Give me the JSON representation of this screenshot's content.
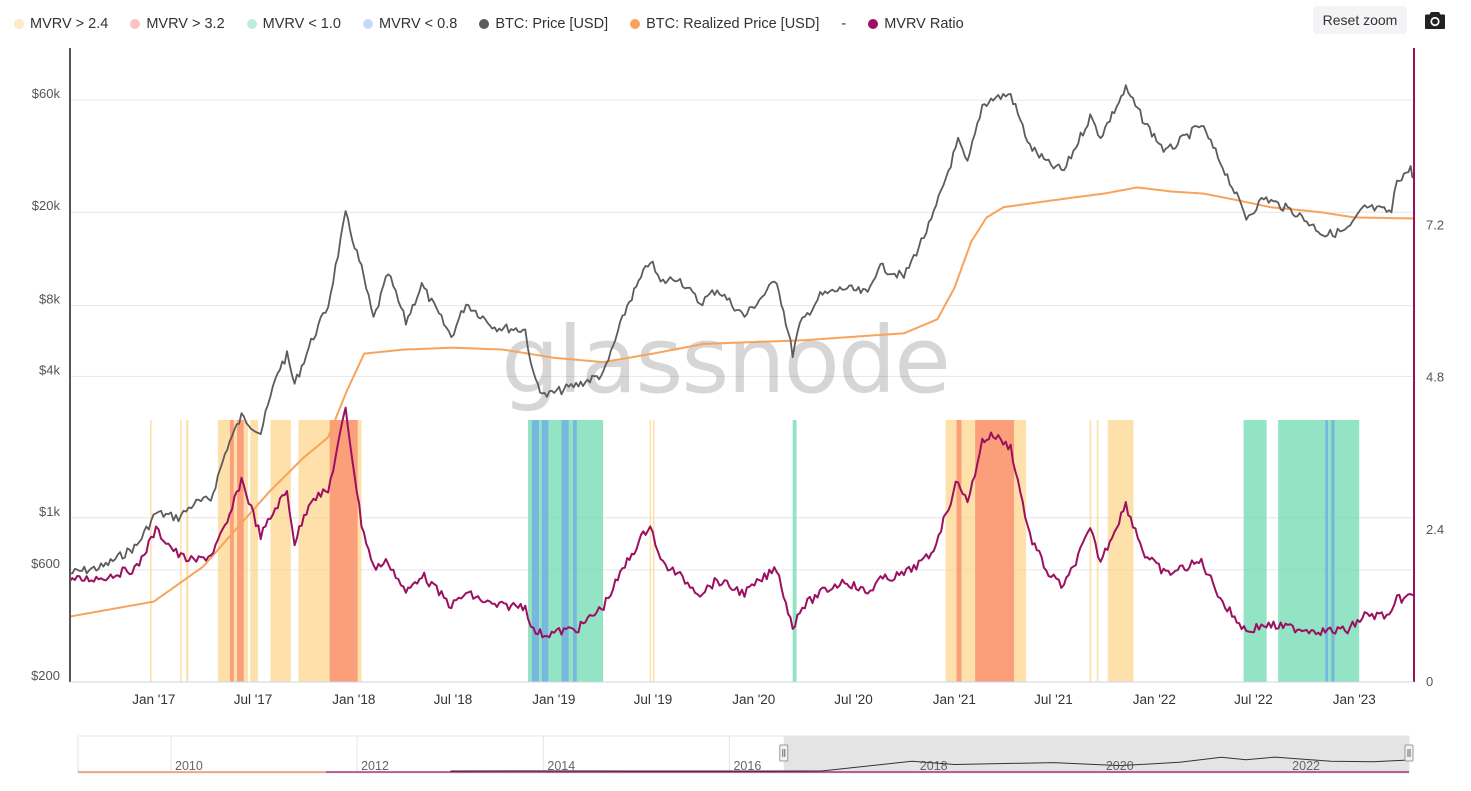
{
  "legend": [
    {
      "label": "MVRV > 2.4",
      "color": "#fde9c4"
    },
    {
      "label": "MVRV > 3.2",
      "color": "#fbc4c0"
    },
    {
      "label": "MVRV < 1.0",
      "color": "#bdeedd"
    },
    {
      "label": "MVRV < 0.8",
      "color": "#c4d9fb"
    },
    {
      "label": "BTC: Price [USD]",
      "color": "#5c5c5c"
    },
    {
      "label": "BTC: Realized Price [USD]",
      "color": "#f7a35c"
    },
    {
      "label": "-",
      "color": ""
    },
    {
      "label": "MVRV Ratio",
      "color": "#9b1060"
    }
  ],
  "toolbar": {
    "reset_zoom_label": "Reset zoom"
  },
  "watermark": "glassnode",
  "colors": {
    "price": "#5c5c5c",
    "realized": "#f7a35c",
    "mvrv": "#9b1060",
    "band_gt24": "#fcd68d",
    "band_gt32": "#f98a6b",
    "band_lt10": "#6fd9b1",
    "band_lt08": "#6fa8e6"
  },
  "chart_data": {
    "type": "line",
    "left_axis": {
      "scale": "log",
      "range": [
        200,
        100000
      ],
      "ticks": [
        200,
        600,
        1000,
        4000,
        8000,
        20000,
        60000
      ],
      "tick_labels": [
        "$200",
        "$600",
        "$1k",
        "$4k",
        "$8k",
        "$20k",
        "$60k"
      ]
    },
    "right_axis": {
      "scale": "linear",
      "range": [
        0,
        10
      ],
      "ticks": [
        0,
        2.4,
        4.8,
        7.2
      ],
      "tick_labels": [
        "0",
        "2.4",
        "4.8",
        "7.2"
      ]
    },
    "x_range": [
      "2016-08-01",
      "2023-04-20"
    ],
    "x_ticks": [
      "2017-01-01",
      "2017-07-01",
      "2018-01-01",
      "2018-07-01",
      "2019-01-01",
      "2019-07-01",
      "2020-01-01",
      "2020-07-01",
      "2021-01-01",
      "2021-07-01",
      "2022-01-01",
      "2022-07-01",
      "2023-01-01"
    ],
    "x_tick_labels": [
      "Jan '17",
      "Jul '17",
      "Jan '18",
      "Jul '18",
      "Jan '19",
      "Jul '19",
      "Jan '20",
      "Jul '20",
      "Jan '21",
      "Jul '21",
      "Jan '22",
      "Jul '22",
      "Jan '23"
    ],
    "series": [
      {
        "name": "BTC: Price [USD]",
        "axis": "left",
        "x": [
          "2016-08-01",
          "2016-10-01",
          "2016-12-01",
          "2017-01-05",
          "2017-02-15",
          "2017-03-15",
          "2017-04-15",
          "2017-05-15",
          "2017-06-10",
          "2017-07-15",
          "2017-08-15",
          "2017-09-01",
          "2017-09-15",
          "2017-10-15",
          "2017-11-15",
          "2017-12-17",
          "2018-01-15",
          "2018-02-06",
          "2018-03-05",
          "2018-04-06",
          "2018-05-05",
          "2018-06-28",
          "2018-07-25",
          "2018-09-15",
          "2018-11-10",
          "2018-11-25",
          "2018-12-15",
          "2019-02-15",
          "2019-04-02",
          "2019-05-15",
          "2019-06-26",
          "2019-07-15",
          "2019-08-15",
          "2019-09-25",
          "2019-10-26",
          "2019-12-15",
          "2020-02-12",
          "2020-03-12",
          "2020-03-25",
          "2020-05-01",
          "2020-06-15",
          "2020-07-27",
          "2020-08-15",
          "2020-10-01",
          "2020-11-20",
          "2021-01-08",
          "2021-01-25",
          "2021-02-21",
          "2021-03-13",
          "2021-04-14",
          "2021-05-19",
          "2021-06-22",
          "2021-07-20",
          "2021-09-06",
          "2021-09-25",
          "2021-11-10",
          "2021-12-15",
          "2022-01-22",
          "2022-03-28",
          "2022-05-10",
          "2022-06-18",
          "2022-07-20",
          "2022-09-15",
          "2022-11-09",
          "2022-12-20",
          "2023-01-20",
          "2023-03-10",
          "2023-03-20",
          "2023-04-14",
          "2023-04-20"
        ],
        "y": [
          580,
          620,
          760,
          1050,
          1000,
          1150,
          1200,
          2000,
          2700,
          2300,
          4200,
          4900,
          3700,
          5600,
          8000,
          19500,
          11500,
          7000,
          11000,
          6800,
          9800,
          5900,
          8200,
          6500,
          6300,
          4000,
          3300,
          3700,
          4100,
          8000,
          12500,
          10000,
          10600,
          8200,
          9400,
          7200,
          10300,
          5000,
          6600,
          8800,
          9500,
          9000,
          11800,
          10600,
          18300,
          40000,
          32000,
          57000,
          61000,
          63500,
          38000,
          32000,
          30000,
          51000,
          42000,
          67000,
          48000,
          36000,
          47000,
          30000,
          19000,
          23000,
          20000,
          16000,
          16800,
          21000,
          20000,
          27500,
          30500,
          28000
        ]
      },
      {
        "name": "BTC: Realized Price [USD]",
        "axis": "left",
        "x": [
          "2016-08-01",
          "2017-01-01",
          "2017-04-01",
          "2017-06-01",
          "2017-08-01",
          "2017-10-01",
          "2017-11-15",
          "2017-12-20",
          "2018-01-20",
          "2018-04-01",
          "2018-07-01",
          "2018-10-01",
          "2019-01-01",
          "2019-04-01",
          "2019-07-01",
          "2019-10-01",
          "2020-01-01",
          "2020-04-01",
          "2020-07-01",
          "2020-10-01",
          "2020-12-01",
          "2021-01-01",
          "2021-02-01",
          "2021-03-01",
          "2021-04-01",
          "2021-06-01",
          "2021-08-01",
          "2021-10-01",
          "2021-12-01",
          "2022-02-01",
          "2022-04-01",
          "2022-06-01",
          "2022-08-01",
          "2022-11-01",
          "2023-01-01",
          "2023-04-20"
        ],
        "y": [
          380,
          440,
          620,
          900,
          1300,
          1800,
          2200,
          3500,
          5000,
          5200,
          5300,
          5200,
          4800,
          4600,
          5000,
          5500,
          5600,
          5700,
          5900,
          6100,
          7000,
          9500,
          15000,
          19000,
          21000,
          22000,
          23000,
          24000,
          25500,
          24500,
          24000,
          22500,
          21000,
          20000,
          19000,
          18800
        ]
      },
      {
        "name": "MVRV Ratio",
        "axis": "right",
        "x": [
          "2016-08-01",
          "2016-10-01",
          "2016-12-01",
          "2017-01-05",
          "2017-02-15",
          "2017-03-15",
          "2017-04-15",
          "2017-05-15",
          "2017-06-10",
          "2017-07-15",
          "2017-08-15",
          "2017-09-01",
          "2017-09-15",
          "2017-10-15",
          "2017-11-15",
          "2017-12-17",
          "2018-01-15",
          "2018-02-06",
          "2018-03-05",
          "2018-04-06",
          "2018-05-05",
          "2018-06-28",
          "2018-07-25",
          "2018-09-15",
          "2018-11-10",
          "2018-11-25",
          "2018-12-15",
          "2019-02-15",
          "2019-04-02",
          "2019-05-15",
          "2019-06-26",
          "2019-07-15",
          "2019-08-15",
          "2019-09-25",
          "2019-10-26",
          "2019-12-15",
          "2020-02-12",
          "2020-03-12",
          "2020-03-25",
          "2020-05-01",
          "2020-06-15",
          "2020-07-27",
          "2020-08-15",
          "2020-10-01",
          "2020-11-20",
          "2021-01-08",
          "2021-01-25",
          "2021-02-21",
          "2021-03-13",
          "2021-04-14",
          "2021-05-19",
          "2021-06-22",
          "2021-07-20",
          "2021-09-06",
          "2021-09-25",
          "2021-11-10",
          "2021-12-15",
          "2022-01-22",
          "2022-03-28",
          "2022-05-10",
          "2022-06-18",
          "2022-07-20",
          "2022-09-15",
          "2022-11-09",
          "2022-12-20",
          "2023-01-20",
          "2023-03-10",
          "2023-03-20",
          "2023-04-14",
          "2023-04-20"
        ],
        "y": [
          1.6,
          1.65,
          1.8,
          2.4,
          2.0,
          1.9,
          2.0,
          2.5,
          3.2,
          2.3,
          2.8,
          3.0,
          2.2,
          2.9,
          3.0,
          4.3,
          2.5,
          1.8,
          1.9,
          1.4,
          1.7,
          1.2,
          1.4,
          1.2,
          1.2,
          0.8,
          0.75,
          0.85,
          1.2,
          1.9,
          2.5,
          1.9,
          1.7,
          1.4,
          1.6,
          1.4,
          1.8,
          0.85,
          1.15,
          1.4,
          1.6,
          1.4,
          1.6,
          1.7,
          2.0,
          3.2,
          2.8,
          3.8,
          3.9,
          3.7,
          2.3,
          1.7,
          1.5,
          2.4,
          1.9,
          2.8,
          2.0,
          1.7,
          1.9,
          1.2,
          0.8,
          0.9,
          0.85,
          0.8,
          0.82,
          1.05,
          1.05,
          1.3,
          1.35,
          1.37
        ]
      }
    ],
    "bands": [
      {
        "type": "gt24",
        "from": "2016-12-25",
        "to": "2016-12-28"
      },
      {
        "type": "gt24",
        "from": "2017-02-18",
        "to": "2017-02-20"
      },
      {
        "type": "gt24",
        "from": "2017-03-01",
        "to": "2017-03-05"
      },
      {
        "type": "gt24",
        "from": "2017-04-28",
        "to": "2017-06-22"
      },
      {
        "type": "gt32",
        "from": "2017-05-20",
        "to": "2017-05-27"
      },
      {
        "type": "gt32",
        "from": "2017-06-02",
        "to": "2017-06-14"
      },
      {
        "type": "gt24",
        "from": "2017-06-26",
        "to": "2017-07-10"
      },
      {
        "type": "gt24",
        "from": "2017-08-02",
        "to": "2017-09-08"
      },
      {
        "type": "gt24",
        "from": "2017-09-22",
        "to": "2018-01-15"
      },
      {
        "type": "gt32",
        "from": "2017-11-18",
        "to": "2018-01-08"
      },
      {
        "type": "lt10",
        "from": "2018-11-15",
        "to": "2019-04-01"
      },
      {
        "type": "lt08",
        "from": "2018-11-22",
        "to": "2018-12-05"
      },
      {
        "type": "lt08",
        "from": "2018-12-10",
        "to": "2018-12-22"
      },
      {
        "type": "lt08",
        "from": "2019-01-15",
        "to": "2019-01-28"
      },
      {
        "type": "lt08",
        "from": "2019-02-05",
        "to": "2019-02-12"
      },
      {
        "type": "gt24",
        "from": "2019-06-25",
        "to": "2019-06-27"
      },
      {
        "type": "gt24",
        "from": "2019-07-01",
        "to": "2019-07-03"
      },
      {
        "type": "lt10",
        "from": "2020-03-12",
        "to": "2020-03-19"
      },
      {
        "type": "gt24",
        "from": "2020-12-16",
        "to": "2021-05-12"
      },
      {
        "type": "gt32",
        "from": "2021-01-05",
        "to": "2021-01-14"
      },
      {
        "type": "gt32",
        "from": "2021-02-08",
        "to": "2021-04-20"
      },
      {
        "type": "gt24",
        "from": "2021-09-05",
        "to": "2021-09-08"
      },
      {
        "type": "gt24",
        "from": "2021-09-18",
        "to": "2021-09-21"
      },
      {
        "type": "gt24",
        "from": "2021-10-08",
        "to": "2021-11-24"
      },
      {
        "type": "lt10",
        "from": "2022-06-13",
        "to": "2022-07-25"
      },
      {
        "type": "lt10",
        "from": "2022-08-15",
        "to": "2023-01-10"
      },
      {
        "type": "lt08",
        "from": "2022-11-09",
        "to": "2022-11-14"
      },
      {
        "type": "lt08",
        "from": "2022-11-20",
        "to": "2022-11-26"
      }
    ],
    "navigator": {
      "tick_labels": [
        "2010",
        "2012",
        "2014",
        "2016",
        "2018",
        "2020",
        "2022"
      ],
      "tick_x": [
        "2010-01-01",
        "2012-01-01",
        "2014-01-01",
        "2016-01-01",
        "2018-01-01",
        "2020-01-01",
        "2022-01-01"
      ],
      "range": [
        "2009-01-01",
        "2023-04-20"
      ],
      "selected": [
        "2016-08-01",
        "2023-04-20"
      ],
      "price_x": [
        "2013-01-01",
        "2013-12-01",
        "2015-01-01",
        "2016-06-01",
        "2017-01-01",
        "2017-12-17",
        "2018-06-01",
        "2019-06-26",
        "2020-03-12",
        "2020-11-01",
        "2021-04-14",
        "2021-07-20",
        "2021-11-10",
        "2022-06-18",
        "2022-12-01",
        "2023-04-20"
      ],
      "price_y": [
        15,
        1000,
        300,
        650,
        1000,
        19500,
        7000,
        12500,
        5000,
        14000,
        63500,
        30000,
        67000,
        19000,
        16500,
        28000
      ]
    }
  }
}
